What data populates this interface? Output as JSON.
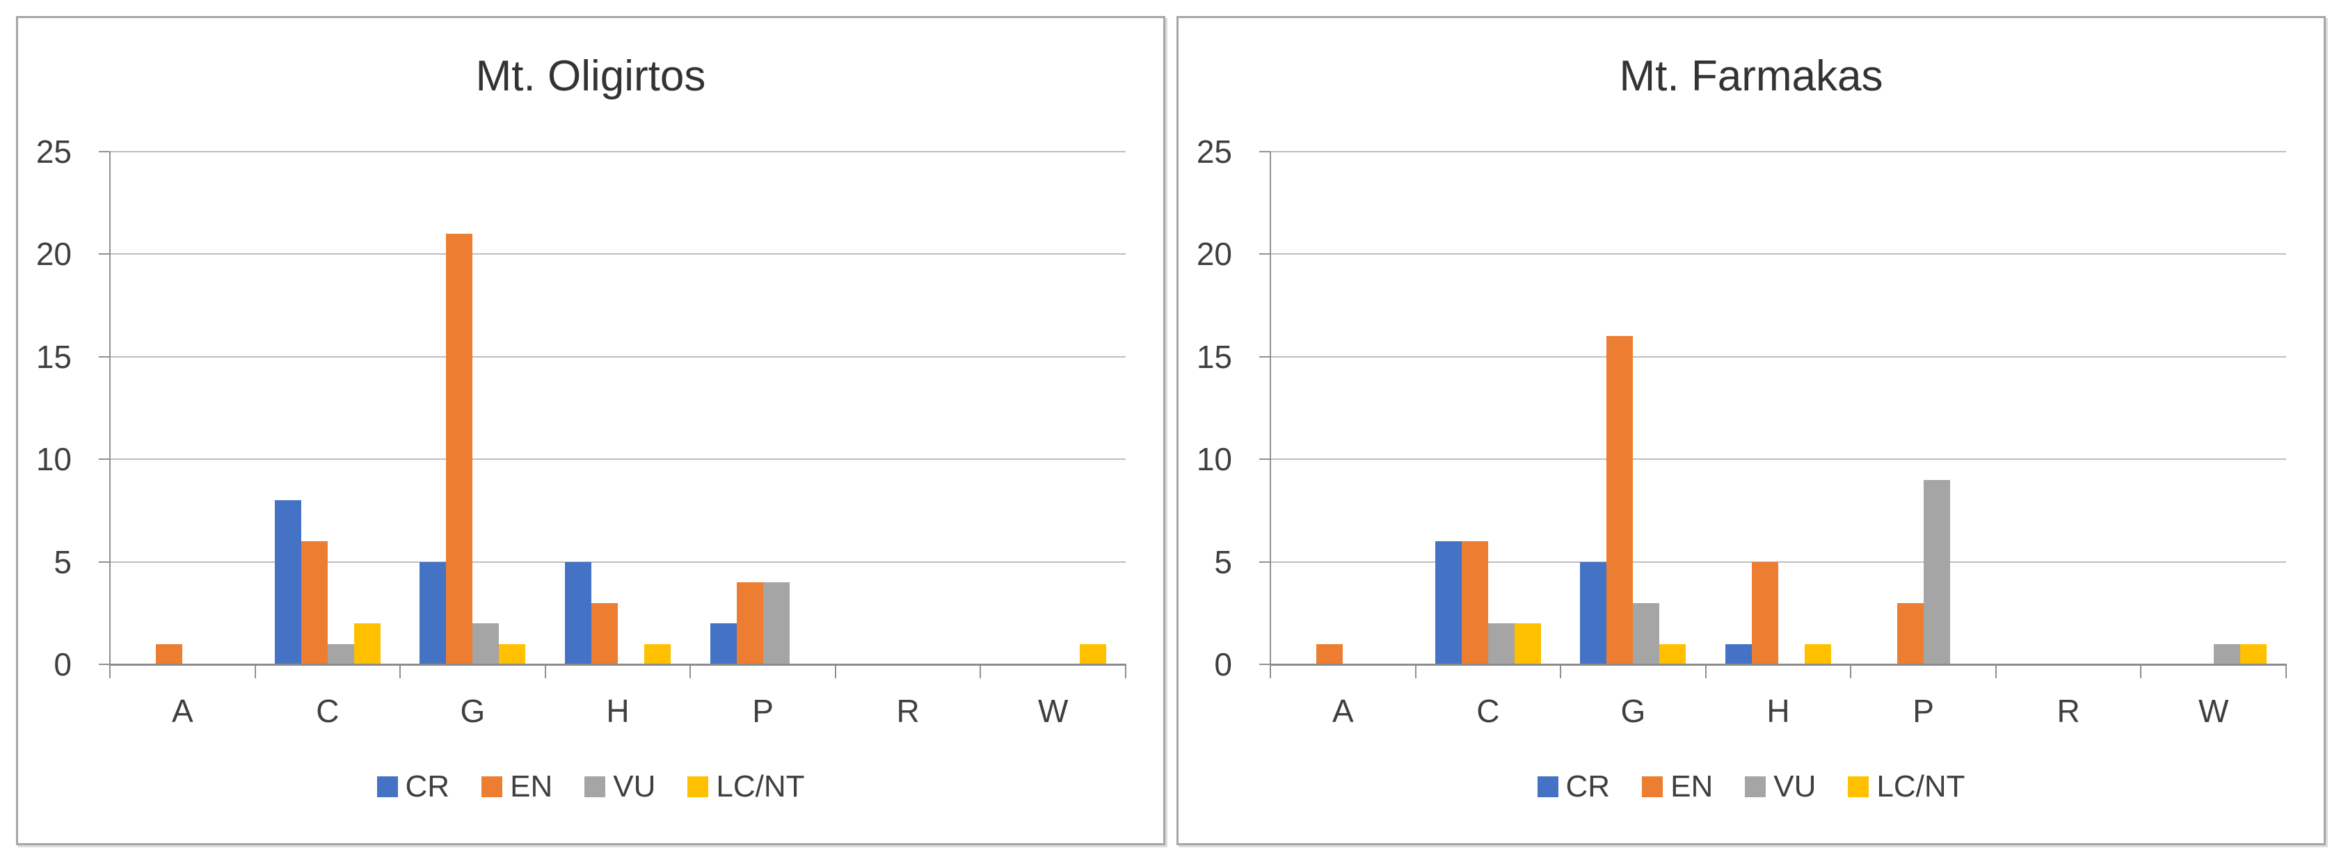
{
  "page": {
    "background": "#ffffff"
  },
  "colors": {
    "series_cr": "#4472C4",
    "series_en": "#ED7D31",
    "series_vu": "#A5A5A5",
    "series_lcnt": "#FFC000",
    "gridline": "#BFBFBF",
    "axis": "#909090",
    "panel_border": "#A6A6A6",
    "text": "#3F3F3F"
  },
  "chart_data": [
    {
      "type": "bar",
      "title": "Mt. Oligirtos",
      "categories": [
        "A",
        "C",
        "G",
        "H",
        "P",
        "R",
        "W"
      ],
      "series": [
        {
          "name": "CR",
          "color": "#4472C4",
          "values": [
            0,
            8,
            5,
            5,
            2,
            0,
            0
          ]
        },
        {
          "name": "EN",
          "color": "#ED7D31",
          "values": [
            1,
            6,
            21,
            3,
            4,
            0,
            0
          ]
        },
        {
          "name": "VU",
          "color": "#A5A5A5",
          "values": [
            0,
            1,
            2,
            0,
            4,
            0,
            0
          ]
        },
        {
          "name": "LC/NT",
          "color": "#FFC000",
          "values": [
            0,
            2,
            1,
            1,
            0,
            0,
            1
          ]
        }
      ],
      "xlabel": "",
      "ylabel": "",
      "ylim": [
        0,
        25
      ],
      "yticks": [
        0,
        5,
        10,
        15,
        20,
        25
      ],
      "grid": true,
      "legend_position": "bottom"
    },
    {
      "type": "bar",
      "title": "Mt. Farmakas",
      "categories": [
        "A",
        "C",
        "G",
        "H",
        "P",
        "R",
        "W"
      ],
      "series": [
        {
          "name": "CR",
          "color": "#4472C4",
          "values": [
            0,
            6,
            5,
            1,
            0,
            0,
            0
          ]
        },
        {
          "name": "EN",
          "color": "#ED7D31",
          "values": [
            1,
            6,
            16,
            5,
            3,
            0,
            0
          ]
        },
        {
          "name": "VU",
          "color": "#A5A5A5",
          "values": [
            0,
            2,
            3,
            0,
            9,
            0,
            1
          ]
        },
        {
          "name": "LC/NT",
          "color": "#FFC000",
          "values": [
            0,
            2,
            1,
            1,
            0,
            0,
            1
          ]
        }
      ],
      "xlabel": "",
      "ylabel": "",
      "ylim": [
        0,
        25
      ],
      "yticks": [
        0,
        5,
        10,
        15,
        20,
        25
      ],
      "grid": true,
      "legend_position": "bottom"
    }
  ]
}
